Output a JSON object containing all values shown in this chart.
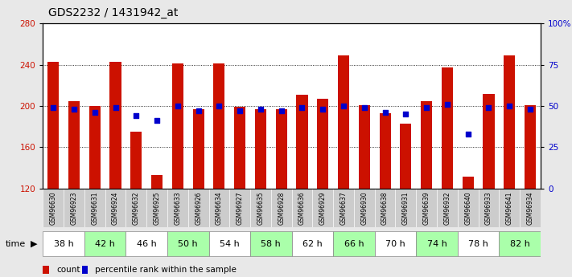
{
  "title": "GDS2232 / 1431942_at",
  "samples": [
    "GSM96630",
    "GSM96923",
    "GSM96631",
    "GSM96924",
    "GSM96632",
    "GSM96925",
    "GSM96633",
    "GSM96926",
    "GSM96634",
    "GSM96927",
    "GSM96635",
    "GSM96928",
    "GSM96636",
    "GSM96929",
    "GSM96637",
    "GSM96930",
    "GSM96638",
    "GSM96931",
    "GSM96639",
    "GSM96932",
    "GSM96640",
    "GSM96933",
    "GSM96641",
    "GSM96934"
  ],
  "counts": [
    243,
    205,
    200,
    243,
    175,
    133,
    241,
    197,
    241,
    199,
    197,
    197,
    211,
    207,
    249,
    201,
    193,
    183,
    205,
    237,
    131,
    212,
    249,
    201
  ],
  "percentile_rank": [
    49,
    48,
    46,
    49,
    44,
    41,
    50,
    47,
    50,
    47,
    48,
    47,
    49,
    48,
    50,
    49,
    46,
    45,
    49,
    51,
    33,
    49,
    50,
    48
  ],
  "time_groups": [
    {
      "label": "38 h",
      "indices": [
        0,
        1
      ],
      "color": "#ffffff"
    },
    {
      "label": "42 h",
      "indices": [
        2,
        3
      ],
      "color": "#aaffaa"
    },
    {
      "label": "46 h",
      "indices": [
        4,
        5
      ],
      "color": "#ffffff"
    },
    {
      "label": "50 h",
      "indices": [
        6,
        7
      ],
      "color": "#aaffaa"
    },
    {
      "label": "54 h",
      "indices": [
        8,
        9
      ],
      "color": "#ffffff"
    },
    {
      "label": "58 h",
      "indices": [
        10,
        11
      ],
      "color": "#aaffaa"
    },
    {
      "label": "62 h",
      "indices": [
        12,
        13
      ],
      "color": "#ffffff"
    },
    {
      "label": "66 h",
      "indices": [
        14,
        15
      ],
      "color": "#aaffaa"
    },
    {
      "label": "70 h",
      "indices": [
        16,
        17
      ],
      "color": "#ffffff"
    },
    {
      "label": "74 h",
      "indices": [
        18,
        19
      ],
      "color": "#aaffaa"
    },
    {
      "label": "78 h",
      "indices": [
        20,
        21
      ],
      "color": "#ffffff"
    },
    {
      "label": "82 h",
      "indices": [
        22,
        23
      ],
      "color": "#aaffaa"
    }
  ],
  "bar_color": "#cc1100",
  "dot_color": "#0000cc",
  "ylim_left": [
    120,
    280
  ],
  "ylim_right": [
    0,
    100
  ],
  "yticks_left": [
    120,
    160,
    200,
    240,
    280
  ],
  "yticks_right": [
    0,
    25,
    50,
    75,
    100
  ],
  "ytick_labels_right": [
    "0",
    "25",
    "50",
    "75",
    "100%"
  ],
  "bg_color": "#e8e8e8",
  "plot_bg_color": "#ffffff",
  "sample_label_bg": "#cccccc",
  "legend_count": "count",
  "legend_pct": "percentile rank within the sample",
  "time_label": "time",
  "title_fontsize": 10,
  "tick_fontsize": 7.5,
  "sample_fontsize": 5.5,
  "time_fontsize": 8
}
